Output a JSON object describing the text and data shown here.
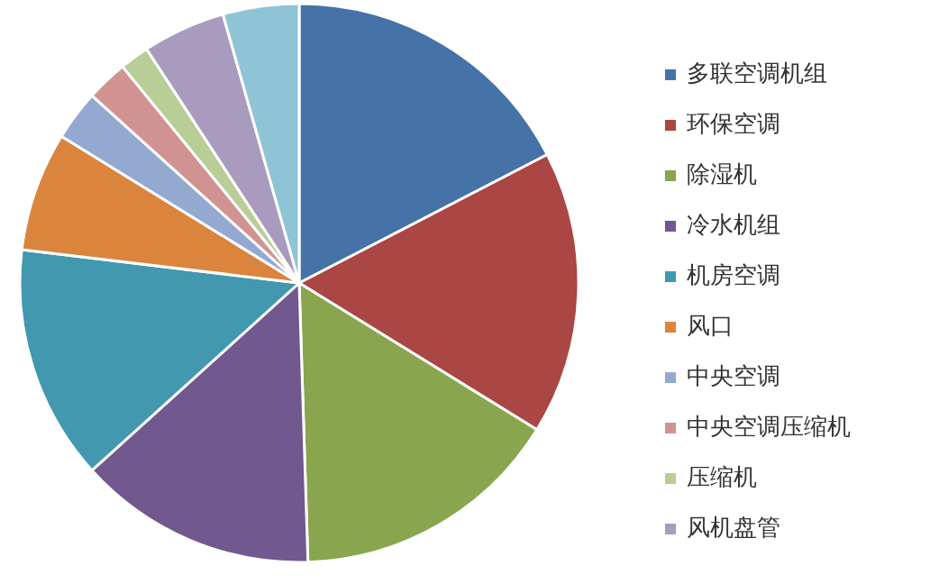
{
  "chart_data": {
    "type": "pie",
    "categories": [
      "多联空调机组",
      "环保空调",
      "除湿机",
      "冷水机组",
      "机房空调",
      "风口",
      "中央空调",
      "中央空调压缩机",
      "压缩机",
      "风机盘管",
      null
    ],
    "values": [
      17.4,
      16.4,
      15.7,
      13.8,
      13.6,
      6.9,
      2.9,
      2.4,
      1.7,
      4.8,
      4.4
    ],
    "colors": [
      "#4572a7",
      "#aa4643",
      "#89a54e",
      "#71588f",
      "#4198af",
      "#db843d",
      "#93a9cf",
      "#d19392",
      "#b9cd96",
      "#a99bbd",
      "#8fc3d6"
    ],
    "legend": "right"
  }
}
